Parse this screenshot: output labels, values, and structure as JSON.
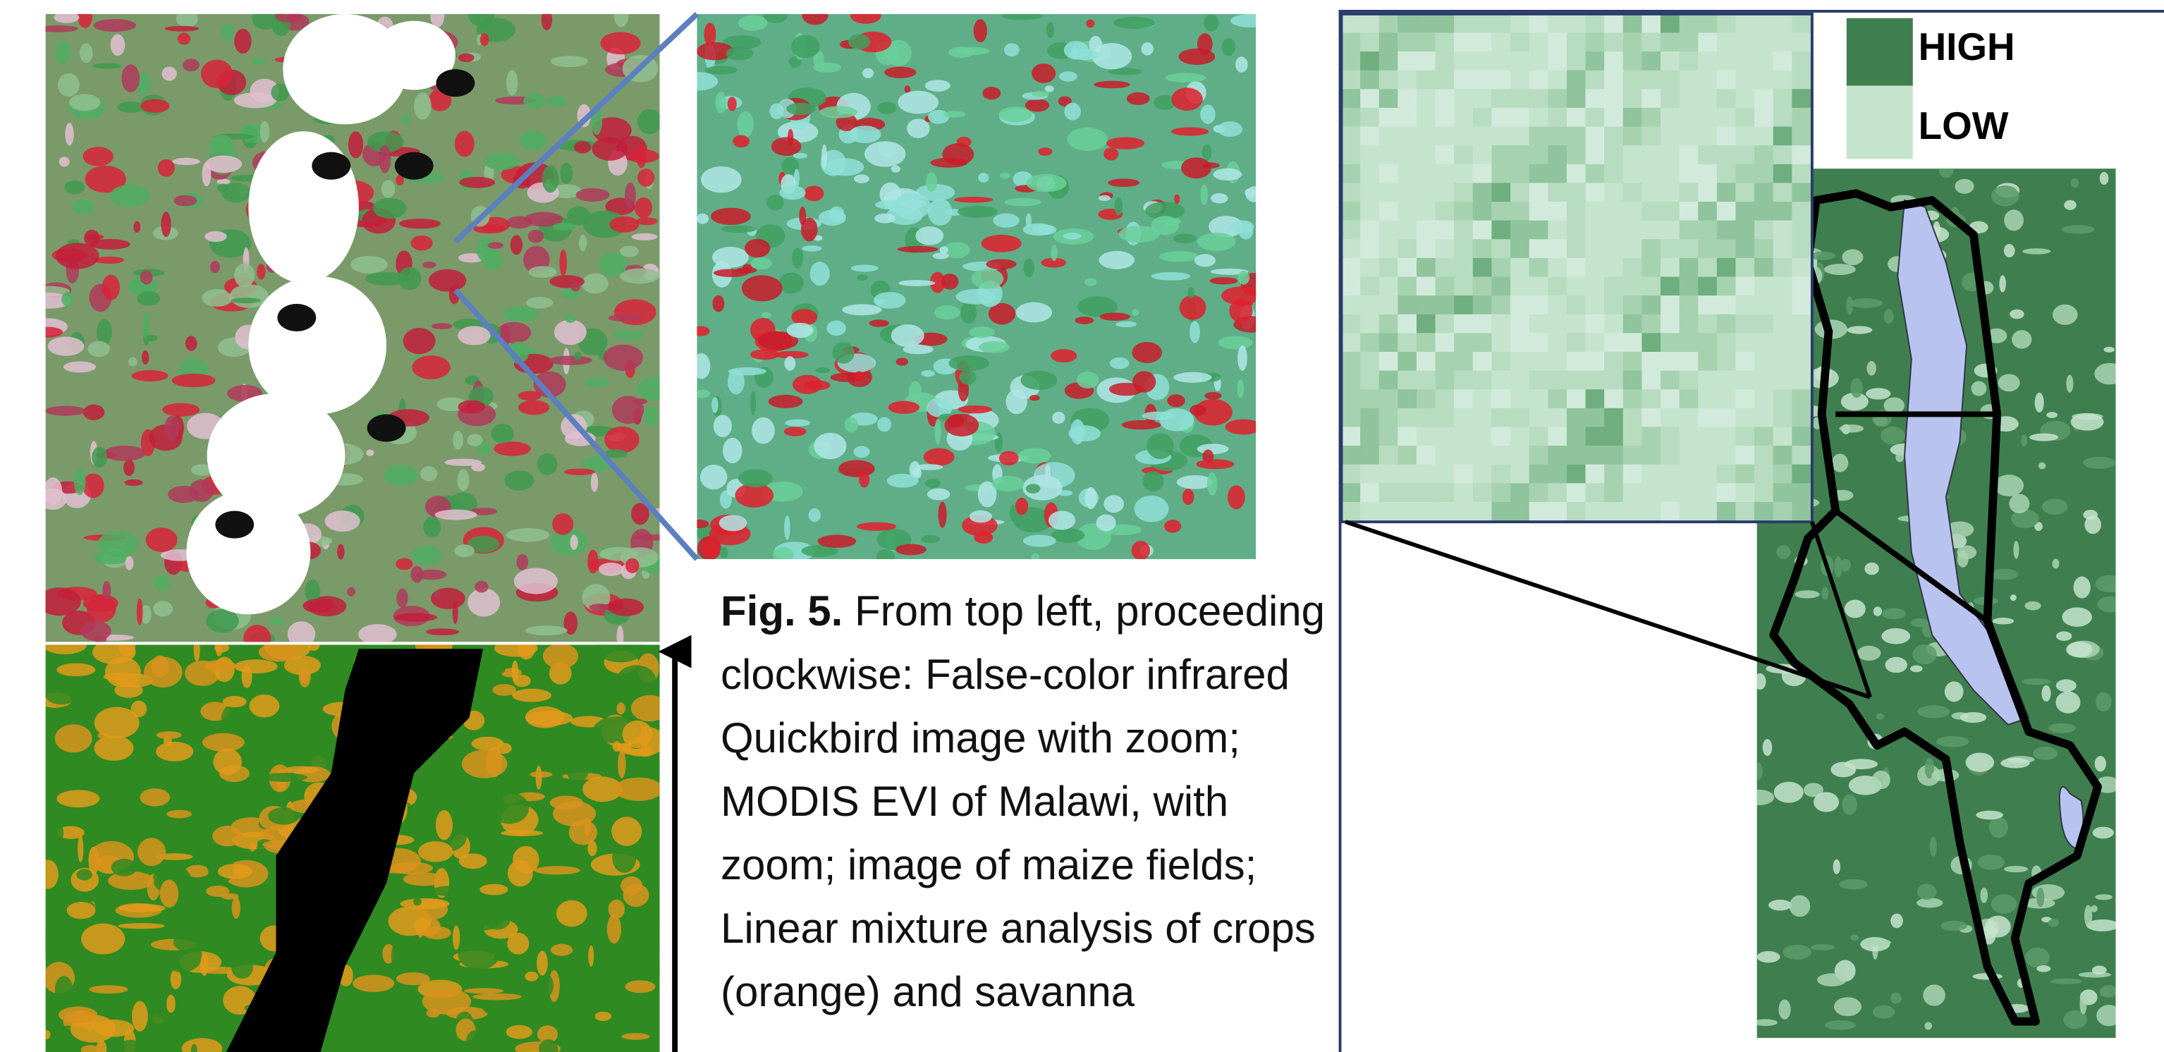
{
  "figure": {
    "caption": {
      "label": "Fig. 5.",
      "text": "From top left, proceeding clockwise: False-color infrared Quickbird image with zoom; MODIS EVI of Malawi, with zoom; image of maize fields; Linear mixture analysis of crops (orange) and savanna"
    },
    "legend": [
      {
        "label": "HIGH",
        "color": "#3f7f4f"
      },
      {
        "label": "LOW",
        "color": "#c5e4cd"
      }
    ]
  }
}
